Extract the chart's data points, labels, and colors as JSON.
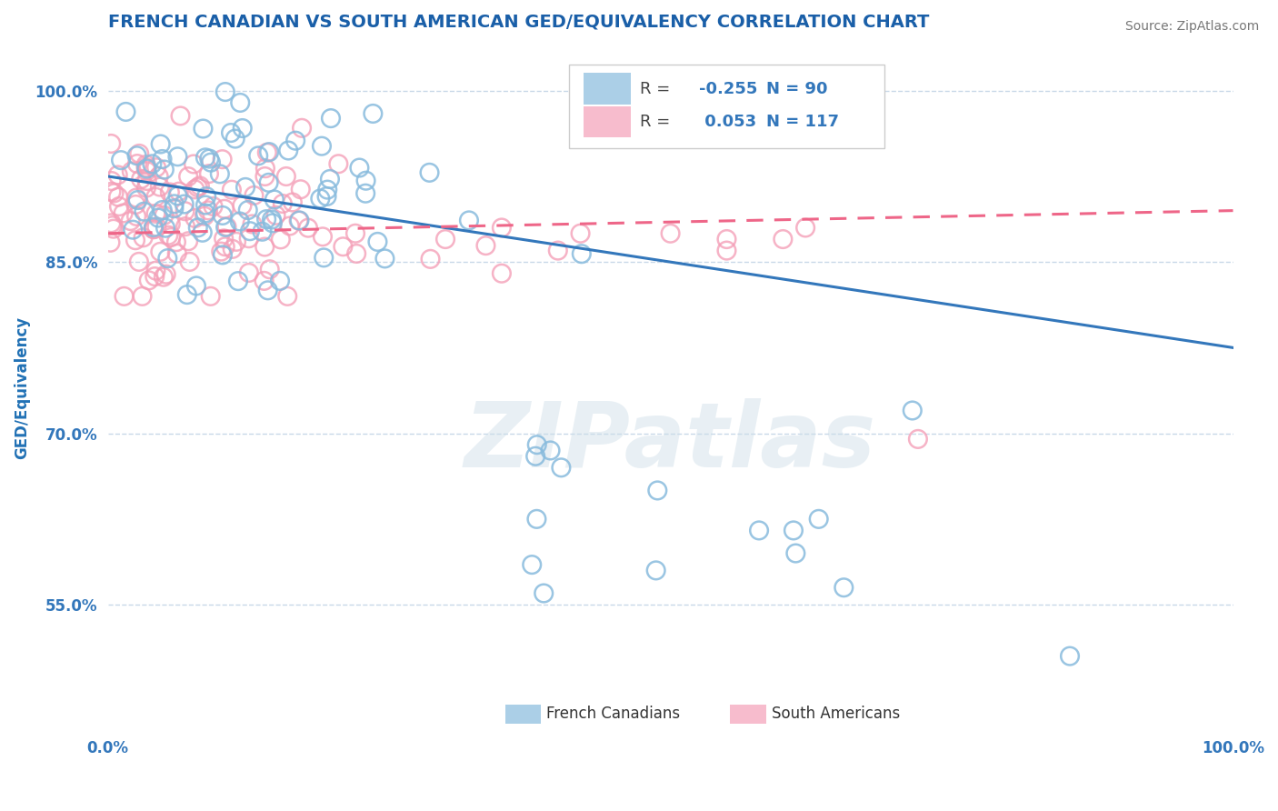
{
  "title": "FRENCH CANADIAN VS SOUTH AMERICAN GED/EQUIVALENCY CORRELATION CHART",
  "source": "Source: ZipAtlas.com",
  "ylabel": "GED/Equivalency",
  "xlim": [
    0.0,
    1.0
  ],
  "ylim": [
    0.44,
    1.04
  ],
  "yticks": [
    0.55,
    0.7,
    0.85,
    1.0
  ],
  "ytick_labels": [
    "55.0%",
    "70.0%",
    "85.0%",
    "100.0%"
  ],
  "xticks": [
    0.0,
    1.0
  ],
  "xtick_labels": [
    "0.0%",
    "100.0%"
  ],
  "blue_color": "#88bbdd",
  "pink_color": "#f4a0b8",
  "blue_line_color": "#3377bb",
  "pink_line_color": "#ee6688",
  "legend_blue_label": "French Canadians",
  "legend_pink_label": "South Americans",
  "R_blue": -0.255,
  "N_blue": 90,
  "R_pink": 0.053,
  "N_pink": 117,
  "watermark": "ZIPatlas",
  "background_color": "#ffffff",
  "grid_color": "#c8d8e8",
  "title_color": "#1a5fa8",
  "axis_label_color": "#2171b5",
  "tick_color": "#3377bb",
  "source_color": "#777777",
  "blue_trend_start": 0.925,
  "blue_trend_end": 0.775,
  "pink_trend_start": 0.875,
  "pink_trend_end": 0.895
}
